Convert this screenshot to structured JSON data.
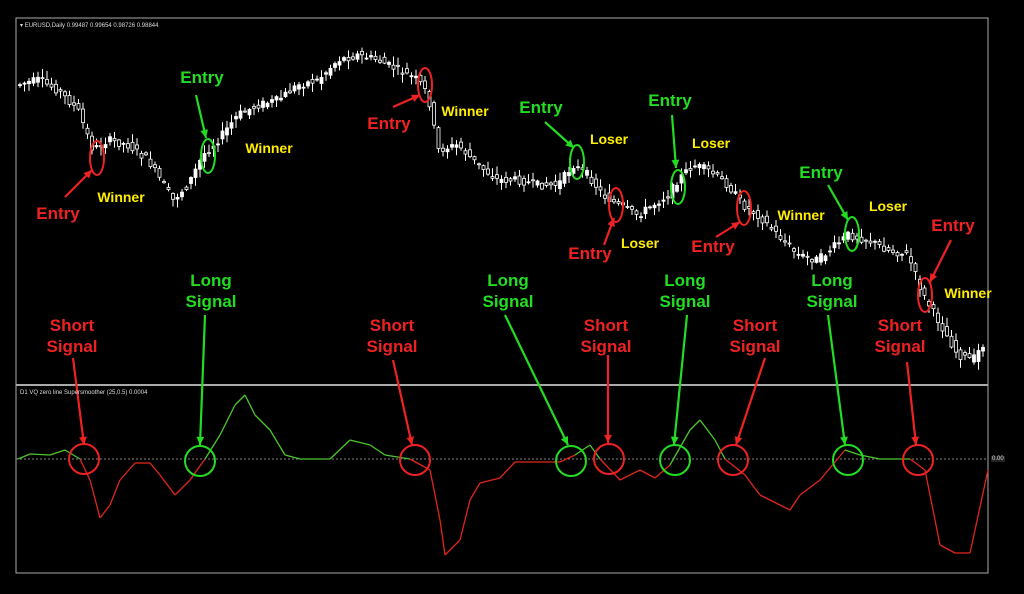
{
  "chart_data": {
    "type": "candlestick+line",
    "symbol_header": "EURUSD,Daily  0.99487 0.99654 0.98726 0.98844",
    "indicator_header": "D1 VQ zero line Supersmoother (25,0.5) 0.0004",
    "zero_label": "0.00",
    "grid": false,
    "colors": {
      "background": "#000000",
      "candles": "#ffffff",
      "indicator_up": "#4cc62c",
      "indicator_down": "#e0261c",
      "zero_line": "#888888",
      "entry_long": "#22dd22",
      "entry_short": "#ee2222",
      "result": "#ffee00"
    },
    "annotations": [
      {
        "text": "Entry",
        "color": "red"
      },
      {
        "text": "Winner",
        "color": "yellow"
      },
      {
        "text": "Entry",
        "color": "green"
      },
      {
        "text": "Winner",
        "color": "yellow"
      },
      {
        "text": "Entry",
        "color": "red"
      },
      {
        "text": "Winner",
        "color": "yellow"
      },
      {
        "text": "Entry",
        "color": "green"
      },
      {
        "text": "Loser",
        "color": "yellow"
      },
      {
        "text": "Entry",
        "color": "red"
      },
      {
        "text": "Loser",
        "color": "yellow"
      },
      {
        "text": "Entry",
        "color": "green"
      },
      {
        "text": "Loser",
        "color": "yellow"
      },
      {
        "text": "Entry",
        "color": "red"
      },
      {
        "text": "Winner",
        "color": "yellow"
      },
      {
        "text": "Entry",
        "color": "green"
      },
      {
        "text": "Loser",
        "color": "yellow"
      },
      {
        "text": "Entry",
        "color": "red"
      },
      {
        "text": "Winner",
        "color": "yellow"
      },
      {
        "text": "Short Signal",
        "color": "red"
      },
      {
        "text": "Long Signal",
        "color": "green"
      },
      {
        "text": "Short Signal",
        "color": "red"
      },
      {
        "text": "Long Signal",
        "color": "green"
      },
      {
        "text": "Short Signal",
        "color": "red"
      },
      {
        "text": "Long Signal",
        "color": "green"
      },
      {
        "text": "Short Signal",
        "color": "red"
      },
      {
        "text": "Long Signal",
        "color": "green"
      },
      {
        "text": "Short Signal",
        "color": "red"
      }
    ]
  }
}
